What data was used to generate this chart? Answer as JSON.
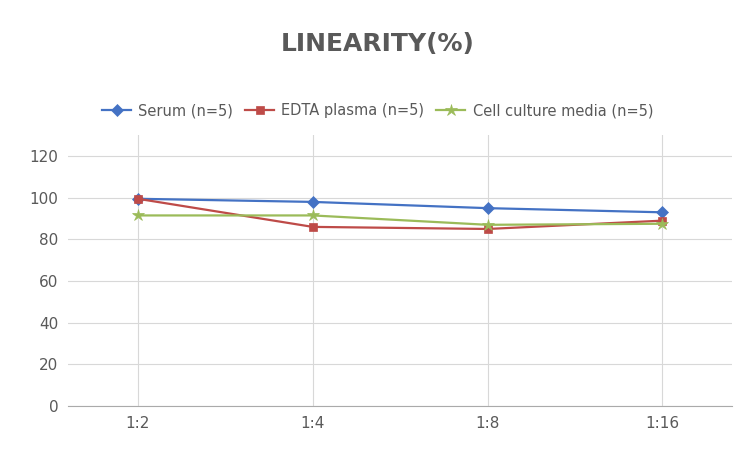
{
  "title": "LINEARITY(%)",
  "x_labels": [
    "1:2",
    "1:4",
    "1:8",
    "1:16"
  ],
  "x_positions": [
    0,
    1,
    2,
    3
  ],
  "series": [
    {
      "name": "Serum (n=5)",
      "values": [
        99.5,
        98.0,
        95.0,
        93.0
      ],
      "color": "#4472C4",
      "marker": "D",
      "marker_size": 6,
      "linewidth": 1.6
    },
    {
      "name": "EDTA plasma (n=5)",
      "values": [
        99.5,
        86.0,
        85.0,
        89.0
      ],
      "color": "#BE4B48",
      "marker": "s",
      "marker_size": 6,
      "linewidth": 1.6
    },
    {
      "name": "Cell culture media (n=5)",
      "values": [
        91.5,
        91.5,
        87.0,
        87.5
      ],
      "color": "#9BBB59",
      "marker": "*",
      "marker_size": 9,
      "linewidth": 1.6
    }
  ],
  "ylim": [
    0,
    130
  ],
  "yticks": [
    0,
    20,
    40,
    60,
    80,
    100,
    120
  ],
  "background_color": "#FFFFFF",
  "grid_color": "#D8D8D8",
  "title_fontsize": 18,
  "title_color": "#595959",
  "legend_fontsize": 10.5,
  "tick_fontsize": 11,
  "tick_color": "#595959"
}
